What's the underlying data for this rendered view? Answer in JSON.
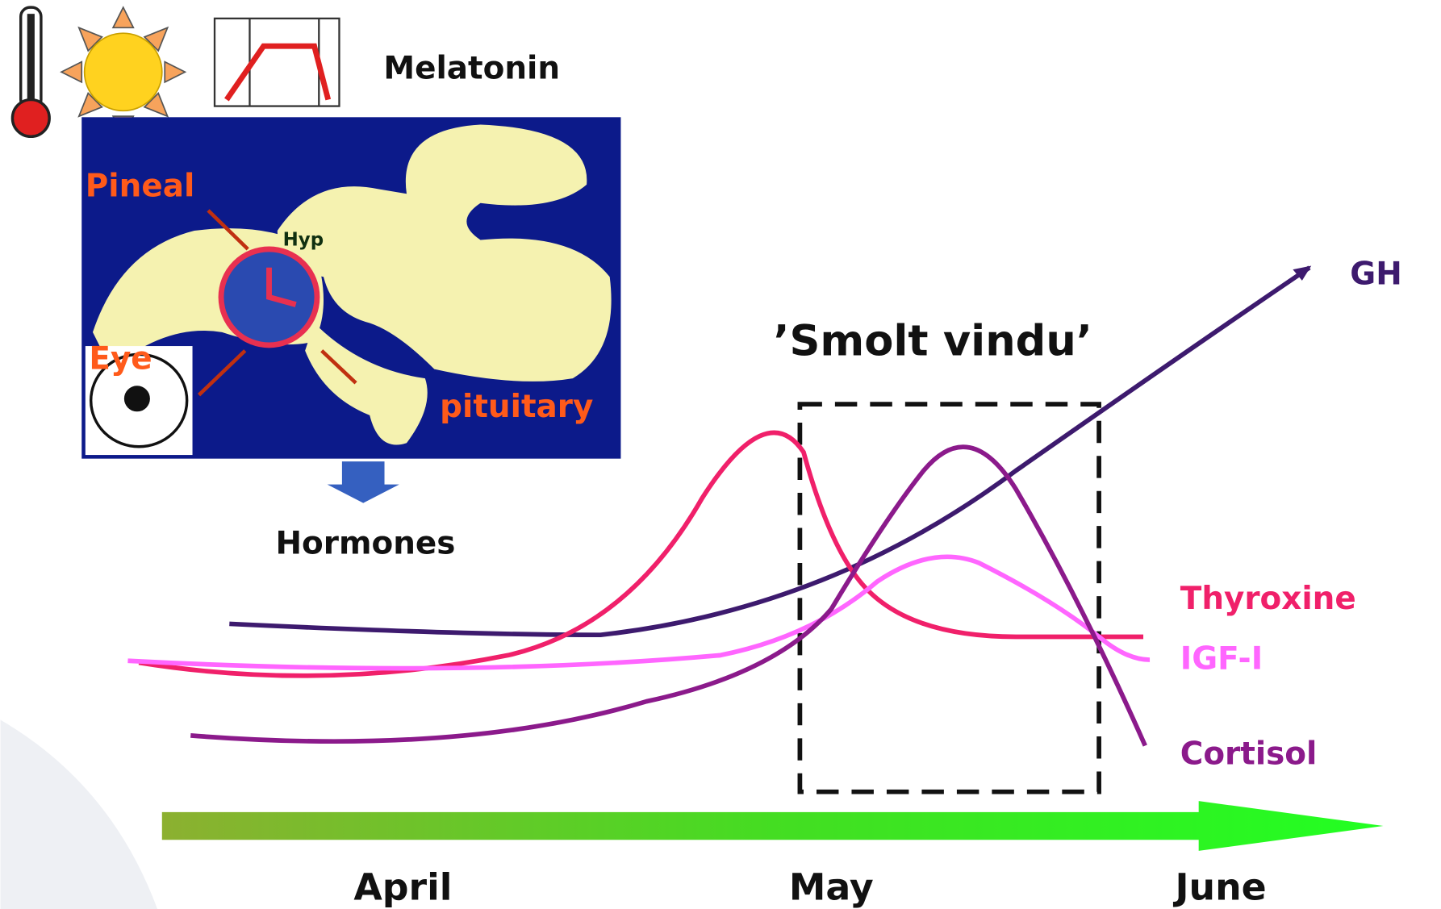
{
  "header": {
    "icon_label": "Melatonin"
  },
  "brain": {
    "labels": {
      "pineal": "Pineal",
      "hypothalamus": "Hyp",
      "eye": "Eye",
      "pituitary": "pituitary"
    }
  },
  "output_label": "Hormones",
  "window_label": "’Smolt vindu’",
  "curves": [
    {
      "label": "GH"
    },
    {
      "label": "Thyroxine"
    },
    {
      "label": "IGF-I"
    },
    {
      "label": "Cortisol"
    }
  ],
  "timeline": [
    "April",
    "May",
    "June"
  ]
}
